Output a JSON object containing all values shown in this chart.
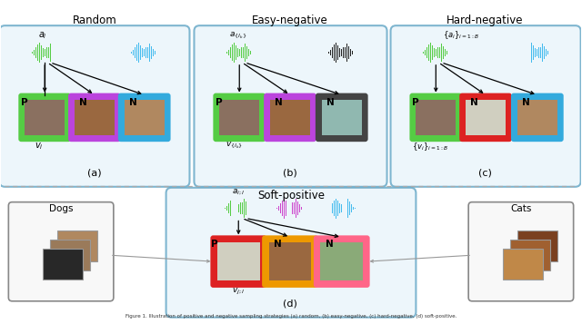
{
  "title_random": "Random",
  "title_easy": "Easy-negative",
  "title_hard": "Hard-negative",
  "title_soft": "Soft-positive",
  "label_a": "(a)",
  "label_b": "(b)",
  "label_c": "(c)",
  "label_d": "(d)",
  "dogs_label": "Dogs",
  "cats_label": "Cats",
  "bg_color": "#ffffff",
  "section_edge": "#6aaac8",
  "section_face": "#eaf5fb",
  "green_wf": "#55cc44",
  "magenta_wf": "#cc44cc",
  "cyan_wf": "#44bbee",
  "red_wf": "#ee2222",
  "black_wf": "#222222",
  "border_green": "#55cc44",
  "border_purple": "#bb44dd",
  "border_cyan": "#33aadd",
  "border_red": "#dd2222",
  "border_orange": "#ee9900",
  "border_pink": "#ff6688",
  "border_dark": "#444444",
  "sep_color": "#aaaaaa",
  "dogs_edge": "#888888",
  "cats_edge": "#888888",
  "arrow_color": "#111111",
  "connector_color": "#999999",
  "caption_color": "#333333",
  "img_dog1": "#8a7060",
  "img_dog2": "#9a7a5a",
  "img_dog3": "#b08860",
  "img_cat1": "#9a6840",
  "img_white": "#d0cfc0",
  "img_bird": "#90b8b0",
  "img_outdoor": "#8aaa78"
}
